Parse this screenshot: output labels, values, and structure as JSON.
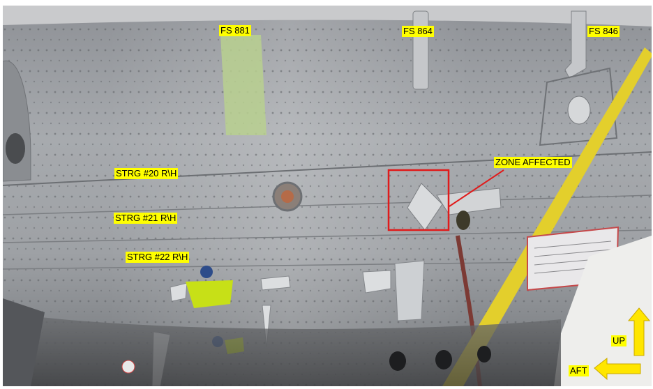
{
  "labels": {
    "fs_881": "FS 881",
    "fs_864": "FS 864",
    "fs_846": "FS 846",
    "strg_20": "STRG #20 R\\H",
    "strg_21": "STRG #21 R\\H",
    "strg_22": "STRG #22 R\\H",
    "zone": "ZONE AFFECTED",
    "up": "UP",
    "aft": "AFT"
  },
  "colors": {
    "label_bg": "#ffff00",
    "zone_box": "#e01b1b",
    "arrow": "#ffe600",
    "skin": "#9a9da1"
  }
}
